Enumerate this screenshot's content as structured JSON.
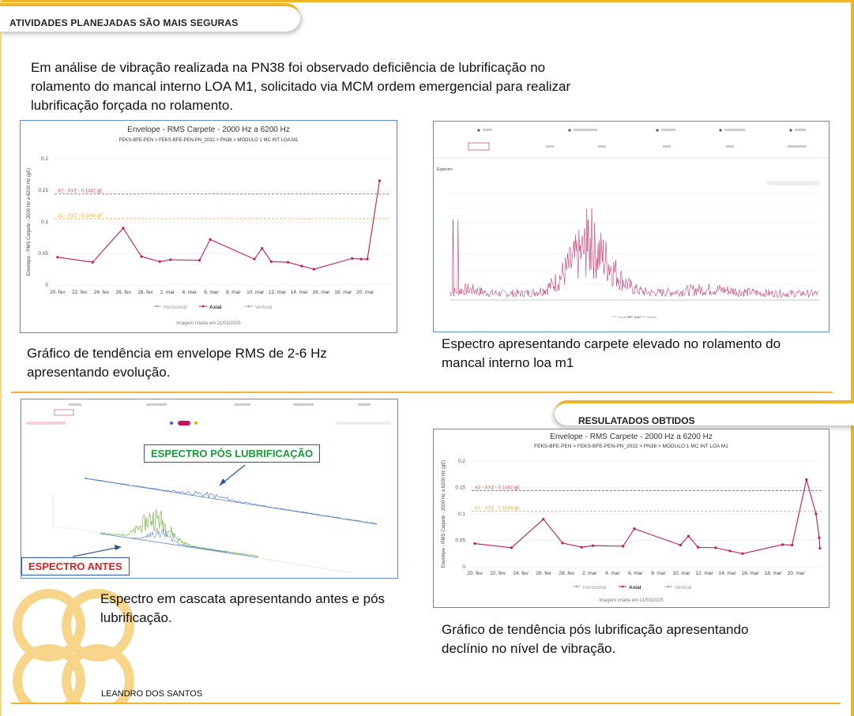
{
  "header": {
    "title": "ATIVIDADES PLANEJADAS SÃO MAIS SEGURAS"
  },
  "intro": {
    "text": "Em análise de vibração realizada na PN38 foi observado deficiência de lubrificação no rolamento do mancal interno LOA M1, solicitado via MCM ordem emergencial para realizar lubrificação forçada no rolamento."
  },
  "captions": {
    "trend_before": "Gráfico de tendência em envelope RMS de 2-6 Hz apresentando evolução.",
    "spectrum": "Espectro apresentando carpete elevado no rolamento do mancal interno loa m1",
    "waterfall": "Espectro em cascata apresentando antes e pós lubrificação.",
    "trend_after": "Gráfico de tendência pós lubrificação apresentando declínio no nível de vibração."
  },
  "results": {
    "title": "RESULATADOS OBTIDOS"
  },
  "author": "LEANDRO DOS SANTOS",
  "waterfall": {
    "label_after": "ESPECTRO PÓS LUBRIFICAÇÃO",
    "label_before": "ESPECTRO ANTES",
    "color_after": "#1a9a3a",
    "color_before": "#e02020"
  },
  "spectrum_panel": {
    "title": "Espectro",
    "legend": [
      "Horizontal",
      "Axial",
      "Vertical"
    ]
  },
  "chart_data": [
    {
      "type": "line",
      "title": "Envelope - RMS Carpete - 2000 Hz a 6200 Hz",
      "subtitle": "FEKS-BFE-PEN > FEKS-BFE-PEN-PN_2032 > PN38 > MÓDULO 1 MC INT LOA M1",
      "ylabel": "Envelope - RMS Carpete - 2000 Hz a 6200 Hz (gE)",
      "ylim": [
        0,
        0.2
      ],
      "yticks": [
        "0",
        "0.05",
        "0.1",
        "0.15",
        "0.2"
      ],
      "xticks": [
        "20. fev",
        "22. fev",
        "24. fev",
        "26. fev",
        "28. fev",
        "2. mar",
        "4. mar",
        "6. mar",
        "8. mar",
        "10. mar",
        "12. mar",
        "14. mar",
        "16. mar",
        "18. mar",
        "20. mar"
      ],
      "legend": [
        "Horizontal",
        "Axial",
        "Vertical"
      ],
      "footer": "Imagem criada em 21/03/2025",
      "thresholds": [
        {
          "label": "A2 - XYZ - 0.1442 gE",
          "value": 0.1442,
          "color": "#e05050"
        },
        {
          "label": "A1 - XYZ - 0.1049 gE",
          "value": 0.1049,
          "color": "#f0b030"
        }
      ],
      "series": [
        {
          "name": "Axial",
          "color": "#c2185b",
          "x": [
            0.2,
            2.5,
            4.5,
            5.7,
            6.9,
            7.6,
            9.5,
            10.2,
            13.1,
            13.6,
            14.2,
            15.3,
            16.2,
            17.0,
            19.5,
            20.1
          ],
          "values": [
            0.044,
            0.036,
            0.09,
            0.045,
            0.037,
            0.04,
            0.039,
            0.072,
            0.041,
            0.058,
            0.037,
            0.036,
            0.03,
            0.025,
            0.042,
            0.041
          ]
        }
      ],
      "series_tail": {
        "x": [
          20.5,
          21.3
        ],
        "values": [
          0.041,
          0.165
        ]
      }
    },
    {
      "type": "line",
      "title": "Envelope - RMS Carpete - 2000 Hz a 6200 Hz",
      "subtitle": "FEKS-BFE-PEN > FEKS-BFE-PEN-PN_2032 > PN38 > MÓDULO 1 MC INT LOA M1",
      "ylabel": "Envelope - RMS Carpete - 2000 Hz a 6200 Hz (gE)",
      "ylim": [
        0,
        0.2
      ],
      "yticks": [
        "0",
        "0.05",
        "0.1",
        "0.15",
        "0.2"
      ],
      "xticks": [
        "20. fev",
        "22. fev",
        "24. fev",
        "26. fev",
        "28. fev",
        "2. mar",
        "4. mar",
        "6. mar",
        "8. mar",
        "10. mar",
        "12. mar",
        "14. mar",
        "16. mar",
        "18. mar",
        "20. mar"
      ],
      "legend": [
        "Horizontal",
        "Axial",
        "Vertical"
      ],
      "footer": "Imagem criada em 21/03/2025",
      "thresholds": [
        {
          "label": "A2 - XYZ - 0.1442 gE",
          "value": 0.1442,
          "color": "#e05050"
        },
        {
          "label": "A1 - XYZ - 0.1049 gE",
          "value": 0.1049,
          "color": "#f0b030"
        }
      ],
      "series": [
        {
          "name": "Axial",
          "color": "#c2185b",
          "x": [
            0.2,
            2.5,
            4.5,
            5.7,
            6.9,
            7.6,
            9.5,
            10.2,
            13.1,
            13.6,
            14.2,
            15.3,
            16.2,
            17.0,
            19.5,
            20.1,
            21.0,
            21.6,
            21.8,
            21.85
          ],
          "values": [
            0.044,
            0.036,
            0.09,
            0.045,
            0.037,
            0.04,
            0.039,
            0.072,
            0.041,
            0.058,
            0.037,
            0.036,
            0.03,
            0.025,
            0.042,
            0.041,
            0.165,
            0.1,
            0.055,
            0.035
          ]
        }
      ]
    }
  ]
}
